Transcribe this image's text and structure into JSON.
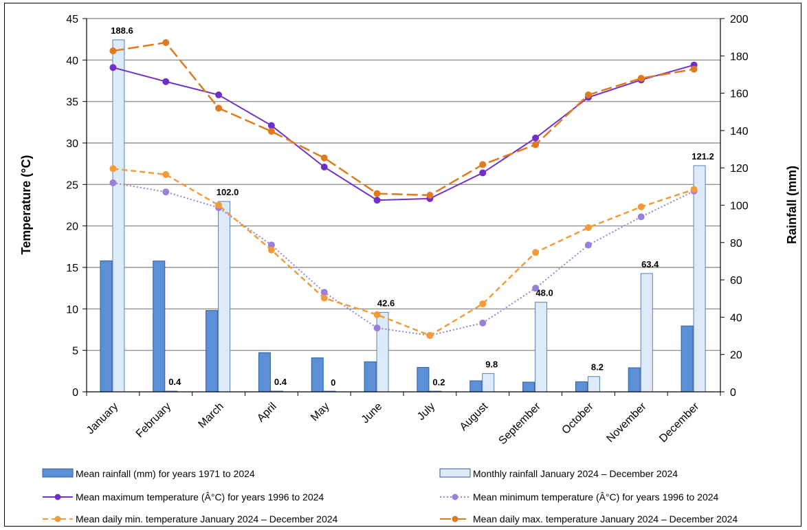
{
  "chart_data": {
    "type": "bar",
    "categories": [
      "January",
      "February",
      "March",
      "April",
      "May",
      "June",
      "July",
      "August",
      "September",
      "October",
      "November",
      "December"
    ],
    "y_left": {
      "label": "Temperature (°C)",
      "range": [
        0,
        45
      ],
      "ticks": [
        0,
        5,
        10,
        15,
        20,
        25,
        30,
        35,
        40,
        45
      ]
    },
    "y_right": {
      "label": "Rainfall (mm)",
      "range": [
        0,
        200
      ],
      "ticks": [
        0,
        20,
        40,
        60,
        80,
        100,
        120,
        140,
        160,
        180,
        200
      ]
    },
    "grid": "horizontal major gridlines",
    "legend_position": "bottom",
    "bar_series": [
      {
        "name": "Mean rainfall (mm) for years 1971 to 2024",
        "axis": "right",
        "color": "#5b8fd6",
        "values": [
          70.2,
          70.1,
          43.6,
          21.0,
          18.2,
          16.1,
          13.1,
          5.9,
          5.2,
          5.4,
          12.9,
          35.3
        ]
      },
      {
        "name": "Monthly rainfall January 2024 – December 2024",
        "axis": "right",
        "color": "#ddeaf8",
        "values": [
          188.6,
          0.4,
          102.0,
          0.4,
          0,
          42.6,
          0.2,
          9.8,
          48.0,
          8.2,
          63.4,
          121.2
        ],
        "data_labels": [
          "188.6",
          "0.4",
          "102.0",
          "0.4",
          "0",
          "42.6",
          "0.2",
          "9.8",
          "48.0",
          "8.2",
          "63.4",
          "121.2"
        ]
      }
    ],
    "line_series": [
      {
        "name": "Mean maximum temperature (Â°C) for years 1996 to 2024",
        "axis": "left",
        "color": "#7030c8",
        "style": "solid",
        "values": [
          39.1,
          37.4,
          35.8,
          32.1,
          27.1,
          23.1,
          23.3,
          26.4,
          30.6,
          35.5,
          37.6,
          39.4
        ]
      },
      {
        "name": "Mean minimum temperature (Â°C) for years 1996 to 2024",
        "axis": "left",
        "color": "#9a7fd8",
        "style": "dotted",
        "values": [
          25.2,
          24.1,
          22.2,
          17.7,
          12.0,
          7.7,
          6.8,
          8.3,
          12.5,
          17.7,
          21.1,
          24.2
        ]
      },
      {
        "name": "Mean daily min. temperature January 2024 – December 2024",
        "axis": "left",
        "color": "#f39a3a",
        "style": "dashed",
        "values": [
          26.9,
          26.2,
          22.5,
          17.1,
          11.3,
          9.3,
          6.8,
          10.6,
          16.8,
          19.8,
          22.3,
          24.4
        ]
      },
      {
        "name": "Mean daily max. temperature January 2024 – December 2024",
        "axis": "left",
        "color": "#e07a1e",
        "style": "longdash",
        "values": [
          41.1,
          42.1,
          34.2,
          31.4,
          28.2,
          23.9,
          23.7,
          27.4,
          29.8,
          35.8,
          37.8,
          38.9
        ]
      }
    ]
  }
}
